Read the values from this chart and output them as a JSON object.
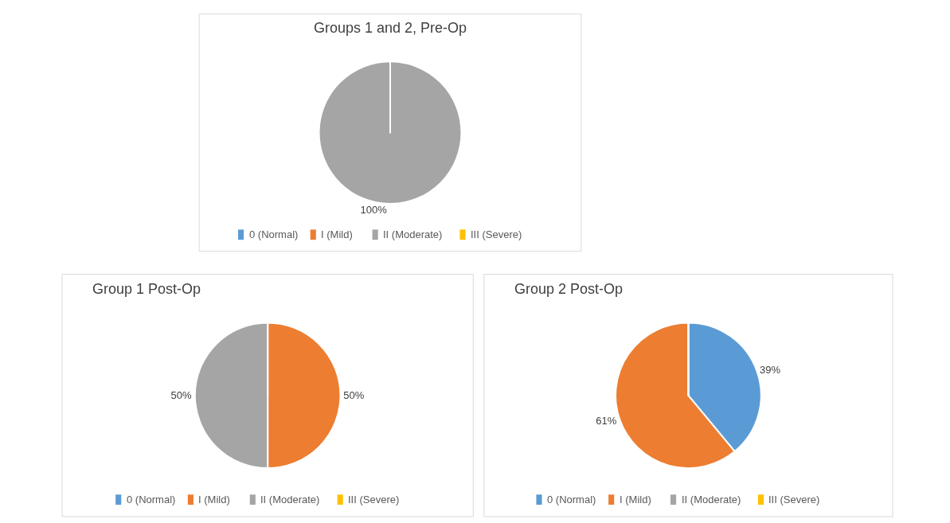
{
  "chart_data": [
    {
      "type": "pie",
      "title": "Groups 1 and 2, Pre-Op",
      "categories": [
        "0 (Normal)",
        "I (Mild)",
        "II (Moderate)",
        "III (Severe)"
      ],
      "values": [
        0,
        0,
        100,
        0
      ],
      "colors": [
        "#5b9bd5",
        "#ed7d31",
        "#a5a5a5",
        "#ffc000"
      ],
      "value_labels": [
        null,
        null,
        "100%",
        null
      ],
      "legend": "bottom"
    },
    {
      "type": "pie",
      "title": "Group 1 Post-Op",
      "categories": [
        "0 (Normal)",
        "I (Mild)",
        "II (Moderate)",
        "III (Severe)"
      ],
      "values": [
        0,
        50,
        50,
        0
      ],
      "colors": [
        "#5b9bd5",
        "#ed7d31",
        "#a5a5a5",
        "#ffc000"
      ],
      "value_labels": [
        null,
        "50%",
        "50%",
        null
      ],
      "legend": "bottom"
    },
    {
      "type": "pie",
      "title": "Group 2 Post-Op",
      "categories": [
        "0 (Normal)",
        "I (Mild)",
        "II (Moderate)",
        "III (Severe)"
      ],
      "values": [
        39,
        61,
        0,
        0
      ],
      "colors": [
        "#5b9bd5",
        "#ed7d31",
        "#a5a5a5",
        "#ffc000"
      ],
      "value_labels": [
        "39%",
        "61%",
        null,
        null
      ],
      "legend": "bottom"
    }
  ]
}
